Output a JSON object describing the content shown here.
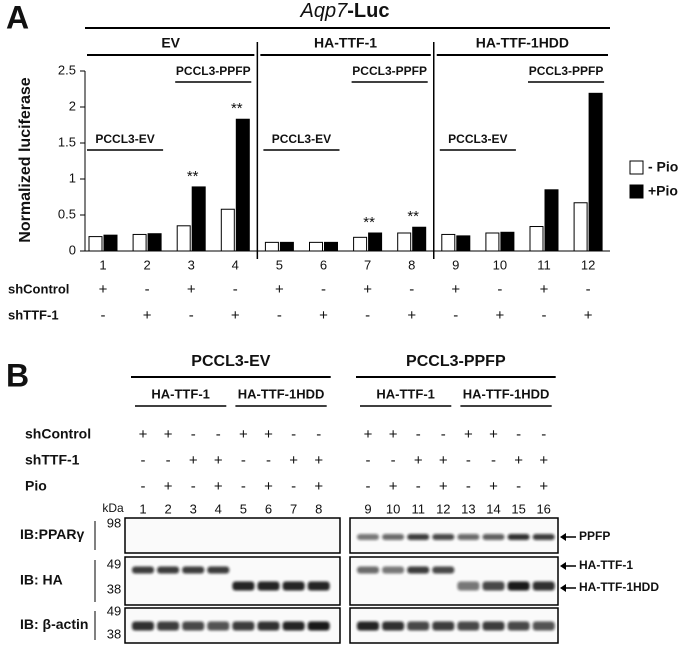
{
  "chart_data": {
    "type": "bar",
    "panel": "A",
    "title_parts": [
      "Aqp7",
      "-Luc"
    ],
    "ylabel": "Normalized luciferase",
    "categories": [
      "1",
      "2",
      "3",
      "4",
      "5",
      "6",
      "7",
      "8",
      "9",
      "10",
      "11",
      "12"
    ],
    "series": [
      {
        "name": "- Pio",
        "color": "#ffffff",
        "values": [
          0.2,
          0.23,
          0.35,
          0.58,
          0.12,
          0.12,
          0.19,
          0.25,
          0.23,
          0.25,
          0.34,
          0.67
        ]
      },
      {
        "name": "+Pio",
        "color": "#000000",
        "values": [
          0.22,
          0.24,
          0.89,
          1.83,
          0.12,
          0.12,
          0.25,
          0.33,
          0.21,
          0.26,
          0.85,
          2.19
        ]
      }
    ],
    "significance": [
      null,
      null,
      "**",
      "**",
      null,
      null,
      "**",
      "**",
      null,
      null,
      null,
      null
    ],
    "ylim": [
      0,
      2.5
    ],
    "yticks": [
      0,
      0.5,
      1,
      1.5,
      2,
      2.5
    ],
    "groups": [
      {
        "label": "EV",
        "sub": [
          "PCCL3-EV",
          "PCCL3-PPFP"
        ]
      },
      {
        "label": "HA-TTF-1",
        "sub": [
          "PCCL3-EV",
          "PCCL3-PPFP"
        ]
      },
      {
        "label": "HA-TTF-1HDD",
        "sub": [
          "PCCL3-EV",
          "PCCL3-PPFP"
        ]
      }
    ],
    "rows": [
      {
        "label": "shControl",
        "signs": [
          "+",
          "-",
          "+",
          "-",
          "+",
          "-",
          "+",
          "-",
          "+",
          "-",
          "+",
          "-"
        ]
      },
      {
        "label": "shTTF-1",
        "signs": [
          "-",
          "+",
          "-",
          "+",
          "-",
          "+",
          "-",
          "+",
          "-",
          "+",
          "-",
          "+"
        ]
      }
    ]
  },
  "blot": {
    "panel": "B",
    "cell_lines": [
      "PCCL3-EV",
      "PCCL3-PPFP"
    ],
    "constructs": [
      "HA-TTF-1",
      "HA-TTF-1HDD",
      "HA-TTF-1",
      "HA-TTF-1HDD"
    ],
    "conditions": [
      {
        "label": "shControl",
        "signs": [
          "+",
          "+",
          "-",
          "-",
          "+",
          "+",
          "-",
          "-",
          "+",
          "+",
          "-",
          "-",
          "+",
          "+",
          "-",
          "-"
        ]
      },
      {
        "label": "shTTF-1",
        "signs": [
          "-",
          "-",
          "+",
          "+",
          "-",
          "-",
          "+",
          "+",
          "-",
          "-",
          "+",
          "+",
          "-",
          "-",
          "+",
          "+"
        ]
      },
      {
        "label": "Pio",
        "signs": [
          "-",
          "+",
          "-",
          "+",
          "-",
          "+",
          "-",
          "+",
          "-",
          "+",
          "-",
          "+",
          "-",
          "+",
          "-",
          "+"
        ]
      }
    ],
    "kda_label": "kDa",
    "lanes": [
      "1",
      "2",
      "3",
      "4",
      "5",
      "6",
      "7",
      "8",
      "9",
      "10",
      "11",
      "12",
      "13",
      "14",
      "15",
      "16"
    ],
    "rows": [
      {
        "label": "IB:PPARγ",
        "markers": [
          "98"
        ]
      },
      {
        "label": "IB: HA",
        "markers": [
          "49",
          "38"
        ]
      },
      {
        "label": "IB: β-actin",
        "markers": [
          "49",
          "38"
        ]
      }
    ],
    "band_labels": [
      "PPFP",
      "HA-TTF-1",
      "HA-TTF-1HDD"
    ]
  }
}
